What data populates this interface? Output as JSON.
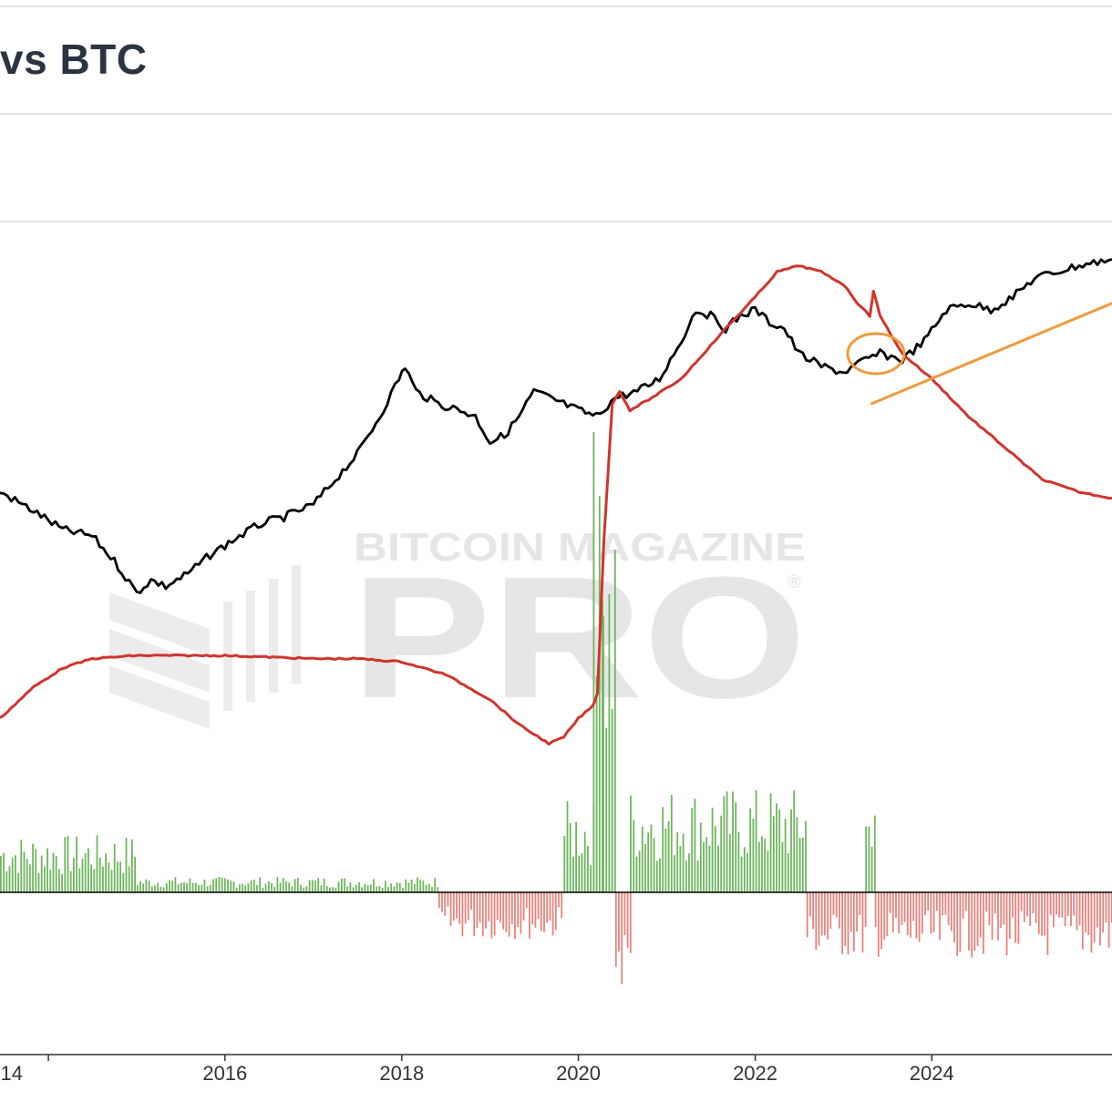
{
  "header": {
    "title": "vs BTC"
  },
  "watermark": {
    "brand": "BITCOIN MAGAZINE",
    "product": "PRO",
    "mark": "®"
  },
  "colors": {
    "price_line": "#000000",
    "ratio_line": "#d0342c",
    "positive_bar": "#6fb55e",
    "negative_bar": "#e8837c",
    "annotation": "#ef9a3c",
    "zero_line": "#000000"
  },
  "chart_data": {
    "type": "line",
    "x_range": [
      "2013-06-15",
      "2026-01-15"
    ],
    "x_ticks": [
      {
        "date": "2014-01-01",
        "label": "14"
      },
      {
        "date": "2016-01-01",
        "label": "2016"
      },
      {
        "date": "2018-01-01",
        "label": "2018"
      },
      {
        "date": "2020-01-01",
        "label": "2020"
      },
      {
        "date": "2022-01-01",
        "label": "2022"
      },
      {
        "date": "2024-01-01",
        "label": "2024"
      }
    ],
    "y_axis_labels": "none",
    "grid": false,
    "series": [
      {
        "color": "#000000",
        "points": [
          [
            "2013-06-15",
            58
          ],
          [
            "2013-11-01",
            55
          ],
          [
            "2014-03-01",
            52
          ],
          [
            "2014-07-01",
            51
          ],
          [
            "2014-10-01",
            47
          ],
          [
            "2015-01-01",
            42
          ],
          [
            "2015-03-01",
            44
          ],
          [
            "2015-05-01",
            43
          ],
          [
            "2015-08-01",
            45
          ],
          [
            "2015-11-01",
            48
          ],
          [
            "2016-03-01",
            51
          ],
          [
            "2016-06-01",
            53
          ],
          [
            "2016-09-01",
            54
          ],
          [
            "2017-01-01",
            56
          ],
          [
            "2017-04-01",
            60
          ],
          [
            "2017-07-01",
            64
          ],
          [
            "2017-10-01",
            70
          ],
          [
            "2017-12-20",
            76
          ],
          [
            "2018-01-15",
            78
          ],
          [
            "2018-03-01",
            74
          ],
          [
            "2018-06-01",
            72
          ],
          [
            "2018-09-01",
            71
          ],
          [
            "2018-11-01",
            70
          ],
          [
            "2019-01-01",
            66
          ],
          [
            "2019-03-01",
            67
          ],
          [
            "2019-05-01",
            70
          ],
          [
            "2019-07-01",
            74
          ],
          [
            "2019-09-01",
            73
          ],
          [
            "2019-11-01",
            72
          ],
          [
            "2020-01-01",
            71
          ],
          [
            "2020-03-15",
            70
          ],
          [
            "2020-06-01",
            73
          ],
          [
            "2020-09-01",
            74
          ],
          [
            "2020-12-01",
            76
          ],
          [
            "2021-03-01",
            82
          ],
          [
            "2021-05-01",
            87
          ],
          [
            "2021-07-01",
            86
          ],
          [
            "2021-09-01",
            84
          ],
          [
            "2021-11-01",
            86
          ],
          [
            "2022-01-01",
            87
          ],
          [
            "2022-03-01",
            85
          ],
          [
            "2022-05-01",
            84
          ],
          [
            "2022-07-01",
            80
          ],
          [
            "2022-10-01",
            78
          ],
          [
            "2023-01-01",
            77
          ],
          [
            "2023-04-01",
            79
          ],
          [
            "2023-06-01",
            80
          ],
          [
            "2023-09-01",
            79
          ],
          [
            "2023-12-01",
            82
          ],
          [
            "2024-03-01",
            87
          ],
          [
            "2024-06-01",
            88
          ],
          [
            "2024-09-01",
            87
          ],
          [
            "2024-12-01",
            89
          ],
          [
            "2025-03-01",
            92
          ],
          [
            "2025-06-01",
            93
          ],
          [
            "2025-09-01",
            94
          ],
          [
            "2026-01-15",
            95
          ]
        ]
      },
      {
        "color": "#d0342c",
        "points": [
          [
            "2013-06-15",
            22
          ],
          [
            "2013-11-01",
            27
          ],
          [
            "2014-03-01",
            30
          ],
          [
            "2014-07-01",
            31.5
          ],
          [
            "2015-01-01",
            32
          ],
          [
            "2016-01-01",
            32
          ],
          [
            "2017-01-01",
            31.5
          ],
          [
            "2017-07-01",
            31.5
          ],
          [
            "2018-01-01",
            31
          ],
          [
            "2018-07-01",
            29
          ],
          [
            "2019-01-01",
            25
          ],
          [
            "2019-05-01",
            21
          ],
          [
            "2019-09-01",
            18
          ],
          [
            "2019-11-01",
            19
          ],
          [
            "2020-01-01",
            22
          ],
          [
            "2020-03-01",
            24
          ],
          [
            "2020-03-20",
            26
          ],
          [
            "2020-04-15",
            50
          ],
          [
            "2020-05-20",
            72
          ],
          [
            "2020-06-20",
            74
          ],
          [
            "2020-08-01",
            71
          ],
          [
            "2020-11-01",
            73
          ],
          [
            "2021-03-01",
            76
          ],
          [
            "2021-06-01",
            80
          ],
          [
            "2021-09-01",
            84
          ],
          [
            "2022-01-01",
            89
          ],
          [
            "2022-04-01",
            93
          ],
          [
            "2022-07-01",
            94
          ],
          [
            "2022-10-01",
            93
          ],
          [
            "2023-01-01",
            91
          ],
          [
            "2023-03-01",
            88
          ],
          [
            "2023-04-20",
            86
          ],
          [
            "2023-05-05",
            90
          ],
          [
            "2023-06-01",
            86
          ],
          [
            "2023-09-01",
            80
          ],
          [
            "2024-01-01",
            76
          ],
          [
            "2024-06-01",
            70
          ],
          [
            "2024-12-01",
            64
          ],
          [
            "2025-04-01",
            60
          ],
          [
            "2025-09-01",
            58
          ],
          [
            "2026-01-15",
            57
          ]
        ]
      }
    ],
    "bars": {
      "type": "bar",
      "note_units": "relative",
      "segments": [
        {
          "from": "2013-06-15",
          "to": "2015-01-01",
          "value": 2.2
        },
        {
          "from": "2015-01-01",
          "to": "2018-06-01",
          "value": 0.6
        },
        {
          "from": "2018-06-01",
          "to": "2019-11-01",
          "value": -1.8
        },
        {
          "from": "2019-11-01",
          "to": "2020-03-01",
          "value": 3.5
        },
        {
          "from": "2020-03-01",
          "to": "2020-04-10",
          "value": 27
        },
        {
          "from": "2020-04-10",
          "to": "2020-06-01",
          "value": 14
        },
        {
          "from": "2020-06-01",
          "to": "2020-08-01",
          "value": -4
        },
        {
          "from": "2020-08-01",
          "to": "2022-08-01",
          "value": 4
        },
        {
          "from": "2022-08-01",
          "to": "2023-04-01",
          "value": -2.5
        },
        {
          "from": "2023-04-01",
          "to": "2023-05-10",
          "value": 5.5
        },
        {
          "from": "2023-05-10",
          "to": "2026-01-15",
          "value": -2.5
        }
      ]
    },
    "annotations": [
      {
        "type": "circle",
        "center": [
          "2023-05-15",
          80
        ]
      },
      {
        "type": "trendline",
        "from": [
          "2023-01-01",
          72
        ],
        "to": [
          "2026-01-15",
          88
        ]
      }
    ]
  }
}
